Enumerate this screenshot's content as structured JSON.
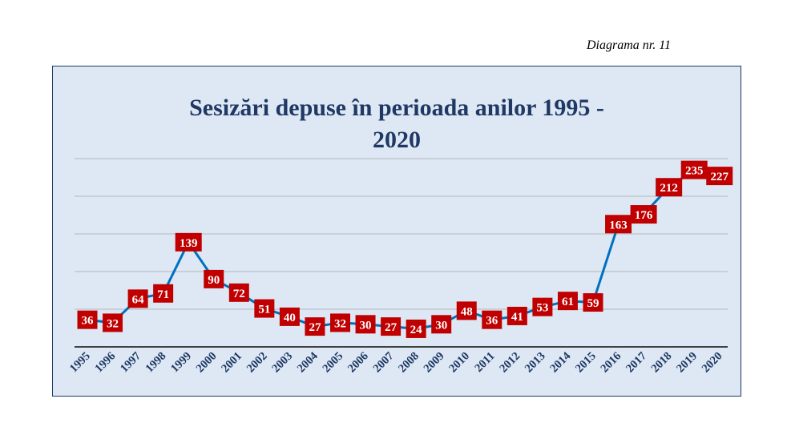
{
  "caption": "Diagrama nr. 11",
  "colors": {
    "line": "#0070c0",
    "marker_fill": "#5b9bd5",
    "label_bg": "#c00000",
    "label_text": "#ffffff",
    "axis": "#404040",
    "grid": "#a6a6a6",
    "tick_text": "#1f3864",
    "title": "#1f3864",
    "plot_bg": "#dde8f4"
  },
  "chart_data": {
    "type": "line",
    "title_lines": [
      "Sesizări depuse în perioada anilor 1995 -",
      "2020"
    ],
    "title": "Sesizări depuse în perioada anilor 1995 - 2020",
    "xlabel": "",
    "ylabel": "",
    "ylim": [
      0,
      250
    ],
    "grid": true,
    "legend": "none",
    "categories": [
      "1995",
      "1996",
      "1997",
      "1998",
      "1999",
      "2000",
      "2001",
      "2002",
      "2003",
      "2004",
      "2005",
      "2006",
      "2007",
      "2008",
      "2009",
      "2010",
      "2011",
      "2012",
      "2013",
      "2014",
      "2015",
      "2016",
      "2017",
      "2018",
      "2019",
      "2020"
    ],
    "series": [
      {
        "values": [
          36,
          32,
          64,
          71,
          139,
          90,
          72,
          51,
          40,
          27,
          32,
          30,
          27,
          24,
          30,
          48,
          36,
          41,
          53,
          61,
          59,
          163,
          176,
          212,
          235,
          227
        ]
      }
    ]
  }
}
